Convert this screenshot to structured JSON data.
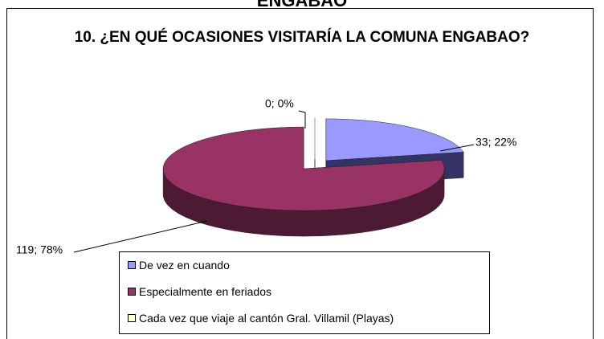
{
  "cropped_heading": "ENGABAO",
  "chart_data": {
    "type": "pie3d",
    "title": "10. ¿EN QUÉ OCASIONES VISITARÍA LA COMUNA ENGABAO?",
    "categories": [
      "De vez en cuando",
      "Especialmente en feriados",
      "Cada vez que viaje al cantón Gral. Villamil (Playas)"
    ],
    "values": [
      33,
      119,
      0
    ],
    "value_labels": [
      "33; 22%",
      "119; 78%",
      "0; 0%"
    ],
    "colors": [
      "#9999ff",
      "#993366",
      "#ffffcc"
    ],
    "side_colors": [
      "#333366",
      "#4d1a33",
      "#999966"
    ],
    "legend": "bottom"
  }
}
